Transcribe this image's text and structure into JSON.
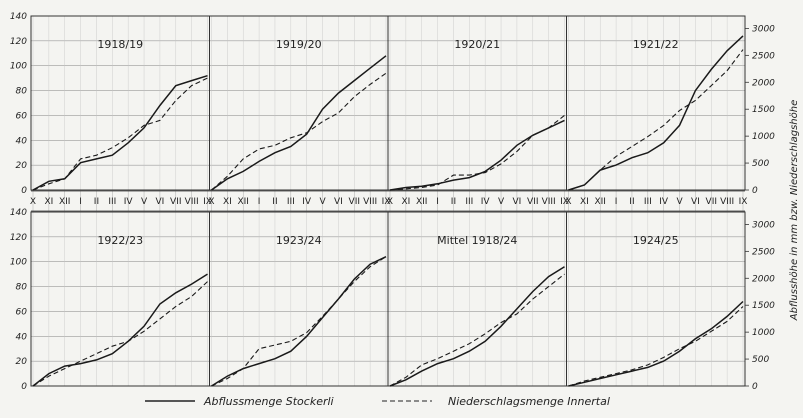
{
  "chart_data": {
    "type": "line",
    "layout": "2x4 small multiples",
    "months": [
      "X",
      "XI",
      "XII",
      "I",
      "II",
      "III",
      "IV",
      "V",
      "VI",
      "VII",
      "VIII",
      "IX"
    ],
    "y_left_ticks": [
      0,
      20,
      40,
      60,
      80,
      100,
      120,
      140
    ],
    "y_right_ticks": [
      0,
      500,
      1000,
      1500,
      2000,
      2500,
      3000
    ],
    "ylim_left": [
      0,
      140
    ],
    "ylim_right": [
      0,
      3000
    ],
    "ylabel_right": "Abflusshöhe in mm bzw. Niederschlagshöhe",
    "grid": true,
    "legend_position": "bottom",
    "legend": [
      {
        "label": "Abflussmenge Stockerli",
        "style": "solid"
      },
      {
        "label": "Niederschlagsmenge Innertal",
        "style": "dashed"
      }
    ],
    "panels": [
      {
        "title": "1918/19",
        "series": [
          {
            "name": "Abflussmenge Stockerli",
            "values": [
              0,
              7,
              9,
              22,
              25,
              28,
              38,
              50,
              68,
              84,
              88,
              92
            ]
          },
          {
            "name": "Niederschlagsmenge Innertal",
            "values": [
              0,
              5,
              9,
              25,
              28,
              34,
              42,
              52,
              56,
              72,
              84,
              90
            ]
          }
        ]
      },
      {
        "title": "1919/20",
        "series": [
          {
            "name": "Abflussmenge Stockerli",
            "values": [
              0,
              9,
              15,
              23,
              30,
              35,
              45,
              65,
              78,
              88,
              98,
              108
            ]
          },
          {
            "name": "Niederschlagsmenge Innertal",
            "values": [
              0,
              11,
              25,
              33,
              36,
              42,
              46,
              55,
              62,
              75,
              85,
              94
            ]
          }
        ]
      },
      {
        "title": "1920/21",
        "series": [
          {
            "name": "Abflussmenge Stockerli",
            "values": [
              0,
              2,
              3,
              5,
              8,
              10,
              15,
              24,
              36,
              44,
              50,
              56
            ]
          },
          {
            "name": "Niederschlagsmenge Innertal",
            "values": [
              0,
              1,
              2,
              4,
              12,
              12,
              14,
              21,
              31,
              44,
              50,
              60
            ]
          }
        ]
      },
      {
        "title": "1921/22",
        "series": [
          {
            "name": "Abflussmenge Stockerli",
            "values": [
              0,
              4,
              16,
              20,
              26,
              30,
              38,
              52,
              80,
              97,
              112,
              124
            ]
          },
          {
            "name": "Niederschlagsmenge Innertal",
            "values": [
              0,
              4,
              16,
              27,
              35,
              43,
              52,
              64,
              72,
              84,
              96,
              113
            ]
          }
        ]
      },
      {
        "title": "1922/23",
        "series": [
          {
            "name": "Abflussmenge Stockerli",
            "values": [
              0,
              10,
              16,
              18,
              21,
              26,
              36,
              48,
              66,
              75,
              82,
              90
            ]
          },
          {
            "name": "Niederschlagsmenge Innertal",
            "values": [
              0,
              8,
              14,
              20,
              26,
              32,
              36,
              44,
              54,
              64,
              72,
              84
            ]
          }
        ]
      },
      {
        "title": "1923/24",
        "series": [
          {
            "name": "Abflussmenge Stockerli",
            "values": [
              0,
              8,
              14,
              18,
              22,
              28,
              40,
              55,
              70,
              86,
              98,
              104
            ]
          },
          {
            "name": "Niederschlagsmenge Innertal",
            "values": [
              0,
              6,
              14,
              30,
              33,
              36,
              43,
              56,
              70,
              84,
              96,
              104
            ]
          }
        ]
      },
      {
        "title": "Mittel 1918/24",
        "series": [
          {
            "name": "Abflussmenge Stockerli",
            "values": [
              0,
              5,
              12,
              18,
              22,
              28,
              36,
              48,
              62,
              76,
              88,
              96
            ]
          },
          {
            "name": "Niederschlagsmenge Innertal",
            "values": [
              0,
              7,
              17,
              22,
              28,
              34,
              42,
              51,
              58,
              70,
              80,
              90
            ]
          }
        ]
      },
      {
        "title": "1924/25",
        "series": [
          {
            "name": "Abflussmenge Stockerli",
            "values": [
              0,
              3,
              6,
              9,
              12,
              15,
              20,
              28,
              38,
              46,
              56,
              68
            ]
          },
          {
            "name": "Niederschlagsmenge Innertal",
            "values": [
              0,
              4,
              7,
              10,
              13,
              17,
              23,
              30,
              36,
              44,
              52,
              64
            ]
          }
        ]
      }
    ]
  }
}
